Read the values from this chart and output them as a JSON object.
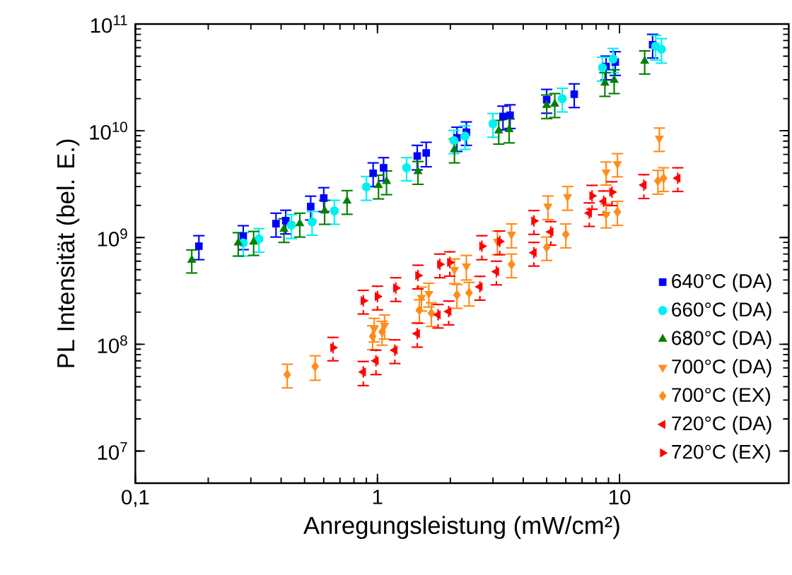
{
  "chart_data": {
    "type": "scatter",
    "xlabel": "Anregungsleistung (mW/cm²)",
    "ylabel": "PL Intensität (bel. E.)",
    "log": "xy",
    "grid": false,
    "legend": "bottom right",
    "xlim": [
      0.1,
      50
    ],
    "ylim": [
      5000000.0,
      100000000000.0
    ],
    "xticks": [
      {
        "value": 0.1,
        "label": "0,1"
      },
      1,
      10
    ],
    "yticks": [
      {
        "value": 10000000.0,
        "label": "10$^{7}$"
      },
      {
        "value": 100000000.0,
        "label": "10$^{8}$"
      },
      {
        "value": 1000000000.0,
        "label": "10$^{9}$"
      },
      {
        "value": 10000000000.0,
        "label": "10$^{10}$"
      },
      {
        "value": 100000000000.0,
        "label": "10$^{11}$"
      }
    ],
    "series": [
      {
        "name": "640°C (DA)",
        "color": "#0000ff",
        "marker": "square",
        "x": [
          0.183,
          0.279,
          0.381,
          0.418,
          0.53,
          0.6,
          0.96,
          1.06,
          1.46,
          1.59,
          2.13,
          2.33,
          3.3,
          3.53,
          5.0,
          6.5,
          8.8,
          9.6,
          13.7
        ],
        "values": [
          830000000.0,
          1030000000.0,
          1350000000.0,
          1440000000.0,
          1950000000.0,
          2340000000.0,
          4000000000.0,
          4500000000.0,
          5800000000.0,
          6200000000.0,
          8600000000.0,
          9700000000.0,
          13600000000.0,
          14000000000.0,
          19500000000.0,
          22000000000.0,
          40000000000.0,
          44000000000.0,
          64000000000.0
        ],
        "errors": [
          210000000.0,
          260000000.0,
          340000000.0,
          360000000.0,
          490000000.0,
          590000000.0,
          1000000000.0,
          1100000000.0,
          1500000000.0,
          1600000000.0,
          2200000000.0,
          2400000000.0,
          3400000000.0,
          3500000000.0,
          4900000000.0,
          5500000000.0,
          10000000000.0,
          11000000000.0,
          16000000000.0
        ]
      },
      {
        "name": "660°C (DA)",
        "color": "#00f0f0",
        "marker": "circle",
        "x": [
          0.279,
          0.324,
          0.441,
          0.537,
          0.664,
          0.9,
          1.32,
          2.07,
          2.3,
          3.0,
          5.8,
          8.5,
          9.4,
          14.1,
          14.9
        ],
        "values": [
          890000000.0,
          970000000.0,
          1310000000.0,
          1400000000.0,
          1780000000.0,
          2980000000.0,
          4500000000.0,
          8100000000.0,
          8900000000.0,
          11600000000.0,
          20000000000.0,
          39000000000.0,
          47000000000.0,
          62000000000.0,
          58000000000.0
        ],
        "errors": [
          220000000.0,
          240000000.0,
          330000000.0,
          350000000.0,
          450000000.0,
          750000000.0,
          1100000000.0,
          2000000000.0,
          2200000000.0,
          2900000000.0,
          5000000000.0,
          9800000000.0,
          12000000000.0,
          16000000000.0,
          15000000000.0
        ]
      },
      {
        "name": "680°C (DA)",
        "color": "#008000",
        "marker": "triangle",
        "x": [
          0.171,
          0.266,
          0.308,
          0.411,
          0.478,
          0.605,
          0.749,
          1.01,
          1.09,
          1.47,
          2.08,
          3.17,
          3.5,
          5.0,
          5.4,
          8.7,
          9.5,
          12.7
        ],
        "values": [
          615000000.0,
          890000000.0,
          910000000.0,
          1200000000.0,
          1350000000.0,
          1780000000.0,
          2200000000.0,
          3070000000.0,
          3360000000.0,
          4150000000.0,
          6700000000.0,
          10000000000.0,
          10300000000.0,
          17300000000.0,
          17800000000.0,
          28000000000.0,
          29800000000.0,
          45000000000.0
        ],
        "errors": [
          150000000.0,
          220000000.0,
          230000000.0,
          300000000.0,
          340000000.0,
          450000000.0,
          550000000.0,
          770000000.0,
          840000000.0,
          1000000000.0,
          1700000000.0,
          2500000000.0,
          2600000000.0,
          4300000000.0,
          4500000000.0,
          7000000000.0,
          7500000000.0,
          11000000000.0
        ]
      },
      {
        "name": "700°C (DA)",
        "color": "#ff8c1a",
        "marker": "triangle-down",
        "x": [
          0.97,
          1.07,
          1.52,
          1.63,
          2.08,
          2.33,
          3.13,
          3.58,
          5.06,
          6.1,
          8.8,
          9.8,
          8.8,
          14.6
        ],
        "values": [
          140000000.0,
          150000000.0,
          274000000.0,
          298000000.0,
          500000000.0,
          540000000.0,
          920000000.0,
          1070000000.0,
          1960000000.0,
          2400000000.0,
          4100000000.0,
          4900000000.0,
          1640000000.0,
          8500000000.0
        ],
        "errors": [
          35000000.0,
          38000000.0,
          69000000.0,
          75000000.0,
          130000000.0,
          140000000.0,
          230000000.0,
          270000000.0,
          490000000.0,
          600000000.0,
          1000000000.0,
          1200000000.0,
          410000000.0,
          2100000000.0
        ]
      },
      {
        "name": "700°C (EX)",
        "color": "#ff8c1a",
        "marker": "diamond",
        "x": [
          0.424,
          0.553,
          0.955,
          1.045,
          1.49,
          1.67,
          2.13,
          2.39,
          3.58,
          5.0,
          6.0,
          9.8,
          14.4,
          15.2
        ],
        "values": [
          52000000.0,
          62000000.0,
          119000000.0,
          131000000.0,
          209000000.0,
          196000000.0,
          290000000.0,
          304000000.0,
          560000000.0,
          810000000.0,
          1070000000.0,
          1740000000.0,
          3400000000.0,
          3600000000.0
        ],
        "errors": [
          13000000.0,
          16000000.0,
          30000000.0,
          33000000.0,
          52000000.0,
          49000000.0,
          73000000.0,
          76000000.0,
          140000000.0,
          200000000.0,
          270000000.0,
          440000000.0,
          850000000.0,
          900000000.0
        ]
      },
      {
        "name": "720°C (DA)",
        "color": "#ff0000",
        "marker": "triangle-left",
        "x": [
          0.874,
          0.986,
          1.18,
          1.46,
          1.78,
          1.97,
          2.65,
          3.1,
          4.43,
          5.2,
          7.5,
          8.6,
          12.6,
          17.4
        ],
        "values": [
          55000000.0,
          70000000.0,
          88000000.0,
          126000000.0,
          189000000.0,
          203000000.0,
          346000000.0,
          480000000.0,
          720000000.0,
          1130000000.0,
          1690000000.0,
          2180000000.0,
          3100000000.0,
          3600000000.0
        ],
        "errors": [
          14000000.0,
          18000000.0,
          22000000.0,
          32000000.0,
          47000000.0,
          51000000.0,
          87000000.0,
          120000000.0,
          180000000.0,
          280000000.0,
          420000000.0,
          550000000.0,
          780000000.0,
          900000000.0
        ]
      },
      {
        "name": "720°C (EX)",
        "color": "#ff0000",
        "marker": "triangle-right",
        "x": [
          0.655,
          0.874,
          1.0,
          1.19,
          1.47,
          1.81,
          1.99,
          2.7,
          3.2,
          4.43,
          7.7,
          9.3
        ],
        "values": [
          93000000.0,
          256000000.0,
          280000000.0,
          336000000.0,
          440000000.0,
          560000000.0,
          585000000.0,
          830000000.0,
          920000000.0,
          1430000000.0,
          2460000000.0,
          2660000000.0
        ],
        "errors": [
          23000000.0,
          64000000.0,
          70000000.0,
          84000000.0,
          110000000.0,
          140000000.0,
          150000000.0,
          210000000.0,
          230000000.0,
          360000000.0,
          620000000.0,
          670000000.0
        ]
      }
    ]
  }
}
